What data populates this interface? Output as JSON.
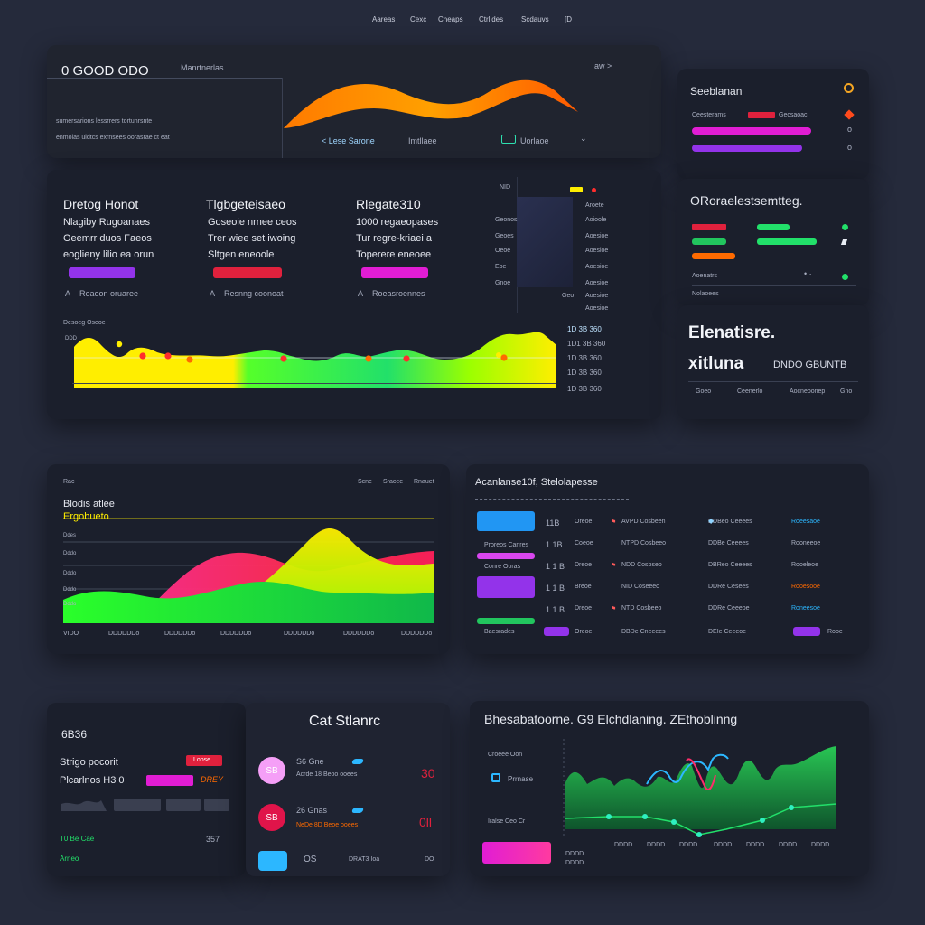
{
  "nav": {
    "items": [
      "Aareas",
      "Cexc",
      "Cheaps",
      "Ctrlides",
      "Scdauvs"
    ],
    "window_label": "[D"
  },
  "top_panel": {
    "title": "0 GOOD ODO",
    "subtitle": "Manrtnerlas",
    "arrow_label": "aw >",
    "line1": "sumersarions lessrrers tortunrsnte",
    "line2": "enmolas uidtcs exrnsees oorasrae ct eat",
    "btn_left": "< Lese Sarone",
    "btn_mid": "Imtllaee",
    "btn_right": "Uorlaoe",
    "chevron": "⌄"
  },
  "right_top": {
    "title": "Seeblanan",
    "row_label": "Ceesterams",
    "row_right": "Gecsaoac",
    "values": [
      "o",
      "o"
    ]
  },
  "stats_panel": {
    "columns": [
      {
        "heading": "Dretog Honot",
        "lines": [
          "Nlagiby Rugoanaes",
          "Oeemrr duos Faeos",
          "eoglieny lilio ea orun"
        ],
        "footer": "Reaeon oruaree",
        "badge": "A"
      },
      {
        "heading": "Tlgbgeteisaeo",
        "lines": [
          "Goseoie nrnee ceos",
          "Trer wiee set iwoing",
          "Sltgen eneoole"
        ],
        "footer": "Resnng coonoat",
        "badge": "A"
      },
      {
        "heading": "Rlegate310",
        "lines": [
          "1000 regaeopases",
          "Tur regre-kriaei a",
          "Toperere eneoee"
        ],
        "footer": "Roeasroennes",
        "badge": "A"
      }
    ],
    "mini_list": {
      "header": "NID",
      "rows": [
        {
          "left": "Geonos",
          "right": "Aroete"
        },
        {
          "left": "Geoes",
          "right": "Aoioole"
        },
        {
          "left": "Oeoe",
          "right": "Aoesioe"
        },
        {
          "left": "Eoe",
          "right": "Aoesioe"
        },
        {
          "left": "Gnoe",
          "right": "Aoesioe"
        },
        {
          "left": "Geo",
          "right": "Aoesioe"
        }
      ],
      "extra": [
        "Aoesioe",
        "Aoesioe"
      ]
    },
    "chart_title": "Desoeg Oseoe",
    "right_values": [
      "1D 3B 360",
      "1D1 3B 360",
      "1D 3B 360",
      "1D 3B 360",
      "1D 3B 360"
    ],
    "right_values2": [
      "1D 3B 360",
      "1D 3B 360",
      "1D 3B 360",
      "1D 3B 360",
      "1D 3B 360"
    ]
  },
  "right_mid": {
    "title": "ORoraelestsemtteg.",
    "labels": [
      "Aoenatrs",
      "Meicmo"
    ],
    "footer": "Nolaoees"
  },
  "right_bottom": {
    "title": "Elenatisre.",
    "subtitle": "xitluna",
    "code": "DNDO GBUNTB",
    "footer": [
      "Goeo",
      "Ceenerlo",
      "Aocneoonep",
      "Gno"
    ]
  },
  "wave_panel": {
    "header_left": "Rac",
    "header_right": [
      "Scne",
      "Sracee",
      "Rnauet"
    ],
    "title": "Blodis atlee",
    "subtitle": "Ergobueto",
    "x_labels": [
      "VIDO",
      "DDDDDDo",
      "DDDDDDo",
      "DDDDDDo",
      "DDDDDDo",
      "DDDDDDo",
      "DDDDDDo"
    ],
    "y_labels": [
      "Ddes",
      "Dddo",
      "Dddo",
      "Dddo",
      "Dddo"
    ]
  },
  "table_panel": {
    "title": "Acanlanse10f, Stelolapesse",
    "left_items": [
      "",
      "Proreos Canres",
      "Conre Ooras",
      "",
      "Bacroes",
      "Baesrades"
    ],
    "rows": [
      {
        "id": "11B",
        "a": "Oreoe",
        "b": "AVPD Cosbeen",
        "c": "DDBeo Ceeees",
        "d": "Roeesaoe"
      },
      {
        "id": "1 1B",
        "a": "Coeoe",
        "b": "NTPD Cosbeeo",
        "c": "DDBe Ceeees",
        "d": "Rooneeoe"
      },
      {
        "id": "1 1 B",
        "a": "Dreoe",
        "b": "NDD Cosbseo",
        "c": "DBReo Ceeees",
        "d": "Rooeleoe"
      },
      {
        "id": "1 1 B",
        "a": "Breoe",
        "b": "NID Coseeeo",
        "c": "DDRe Cesees",
        "d": "Rooesooe"
      },
      {
        "id": "1 1 B",
        "a": "Dreoe",
        "b": "NTD Cosbeeo",
        "c": "DDRe Ceeeoe",
        "d": "Roneesoe"
      },
      {
        "id": "",
        "a": "Oreoe",
        "b": "DBDe Cneeees",
        "c": "DEIe Ceeeoe",
        "d": "Rooe"
      }
    ]
  },
  "summary_panel": {
    "code": "6B36",
    "label1": "Strigo pocorit",
    "label2": "Plcarlnos H3 0",
    "badge": "Loose",
    "tag": "DREY",
    "val": "357",
    "green1": "T0 Be Cae",
    "green2": "Arneo"
  },
  "status_panel": {
    "title": "Cat Stlanrc",
    "items": [
      {
        "icon": "SB",
        "value": "S6 Gne",
        "desc": "Acrde 18 Beoo ooees",
        "num": "30"
      },
      {
        "icon": "SB",
        "value": "26 Gnas",
        "desc": "NeDe 8D Beoe ooees",
        "num": "0ll"
      }
    ],
    "footer_left": "OS",
    "footer_mid": "DRAT3 Ioa",
    "footer_right": "DO"
  },
  "line_panel": {
    "title": "Bhesabatoorne. G9 Elchdlaning. ZEthoblinng",
    "legend": [
      "Croeee Oon",
      "Prrnase",
      "Iralse Ceo Cr"
    ],
    "x_labels": [
      "DDDD",
      "DDDD",
      "DDDD",
      "DDDD",
      "DDDD",
      "DDDD",
      "DDDD",
      "DDDD",
      "DDDD"
    ]
  },
  "colors": {
    "bg": "#252a3b",
    "panel": "#1b1f2c",
    "purple": "#9333ea",
    "magenta": "#e11dd4",
    "red": "#e0213d",
    "green": "#22c55e",
    "lime": "#84ff00",
    "yellow": "#ffee00",
    "cyan": "#2cb7ff",
    "orange": "#ff6a00"
  }
}
